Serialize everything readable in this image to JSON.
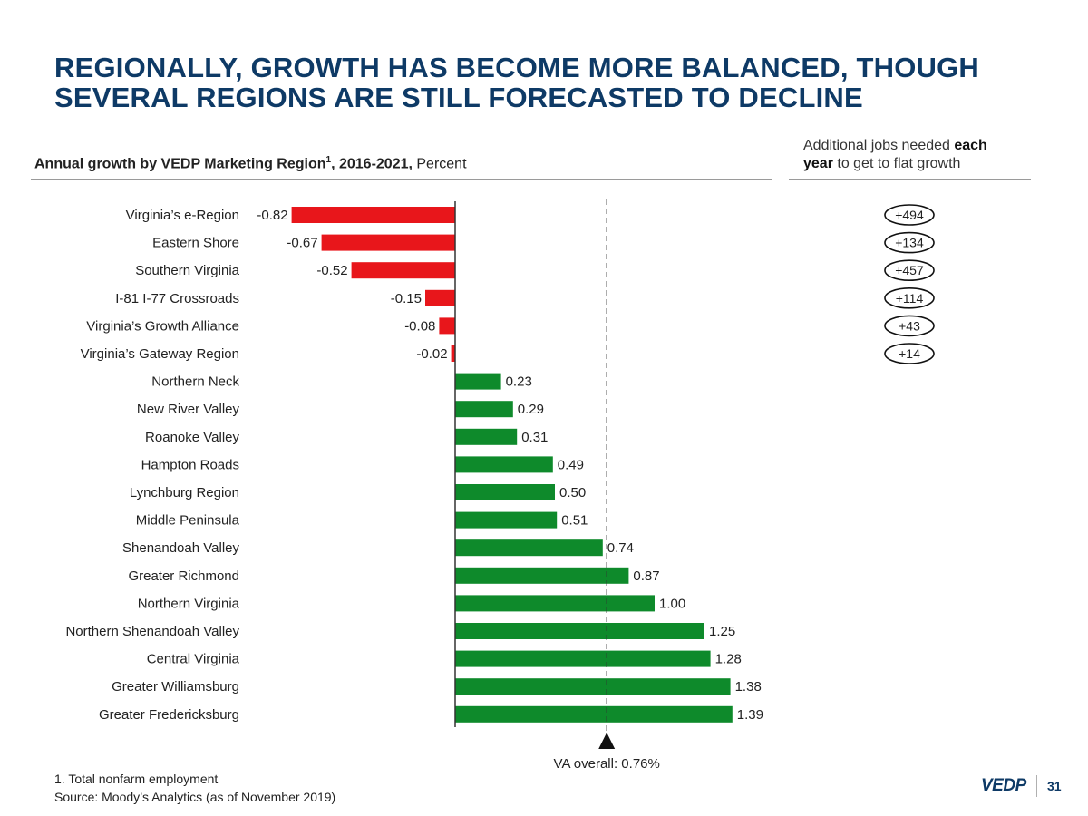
{
  "title": {
    "line1": "REGIONALLY, GROWTH HAS BECOME MORE BALANCED, THOUGH",
    "line2": "SEVERAL REGIONS ARE STILL FORECASTED TO DECLINE"
  },
  "subtitle": {
    "bold_part": "Annual growth by VEDP Marketing Region",
    "superscript": "1",
    "bold_years": ", 2016-2021,",
    "normal_part": " Percent"
  },
  "right_header": {
    "line1_normal": "Additional jobs needed ",
    "line1_bold": "each",
    "line2_bold": "year",
    "line2_normal": " to get to flat growth"
  },
  "colors": {
    "negative": "#e8161b",
    "positive": "#0e8a2b",
    "title": "#0e3a66"
  },
  "chart_data": {
    "type": "bar",
    "orientation": "horizontal",
    "unit": "Percent",
    "categories": [
      "Virginia’s e-Region",
      "Eastern Shore",
      "Southern Virginia",
      "I-81 I-77 Crossroads",
      "Virginia’s Growth Alliance",
      "Virginia’s Gateway Region",
      "Northern Neck",
      "New River Valley",
      "Roanoke Valley",
      "Hampton Roads",
      "Lynchburg Region",
      "Middle Peninsula",
      "Shenandoah Valley",
      "Greater Richmond",
      "Northern Virginia",
      "Northern Shenandoah Valley",
      "Central Virginia",
      "Greater Williamsburg",
      "Greater Fredericksburg"
    ],
    "values": [
      -0.82,
      -0.67,
      -0.52,
      -0.15,
      -0.08,
      -0.02,
      0.23,
      0.29,
      0.31,
      0.49,
      0.5,
      0.51,
      0.74,
      0.87,
      1.0,
      1.25,
      1.28,
      1.38,
      1.39
    ],
    "value_labels": [
      "-0.82",
      "-0.67",
      "-0.52",
      "-0.15",
      "-0.08",
      "-0.02",
      "0.23",
      "0.29",
      "0.31",
      "0.49",
      "0.50",
      "0.51",
      "0.74",
      "0.87",
      "1.00",
      "1.25",
      "1.28",
      "1.38",
      "1.39"
    ],
    "reference_line": {
      "value": 0.76,
      "label": "VA overall: 0.76%"
    },
    "additional_jobs": [
      "+494",
      "+134",
      "+457",
      "+114",
      "+43",
      "+14"
    ]
  },
  "footnotes": {
    "note1": "1. Total nonfarm employment",
    "source": "Source: Moody’s Analytics (as of November 2019)"
  },
  "logo": "VEDP",
  "page_number": "31"
}
